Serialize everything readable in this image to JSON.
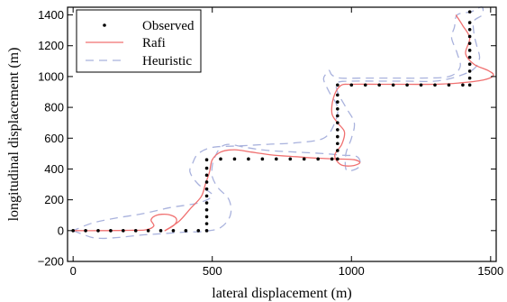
{
  "chart_data": {
    "type": "line",
    "title": "",
    "xlabel": "lateral displacement (m)",
    "ylabel": "longitudinal displacement (m)",
    "xlim": [
      -20,
      1520
    ],
    "ylim": [
      -200,
      1450
    ],
    "xticks": [
      0,
      500,
      1000,
      1500
    ],
    "yticks": [
      -200,
      0,
      200,
      400,
      600,
      800,
      1000,
      1200,
      1400
    ],
    "grid": false,
    "legend_position": "top-left",
    "legend": [
      {
        "label": "Observed",
        "style": "dotted-marker",
        "color": "#000000"
      },
      {
        "label": "Rafi",
        "style": "solid",
        "color": "#f07070"
      },
      {
        "label": "Heuristic",
        "style": "dashed",
        "color": "#a9b2dd"
      }
    ],
    "series": [
      {
        "name": "Observed",
        "color": "#000000",
        "style": "dots",
        "x": [
          0,
          45,
          90,
          135,
          180,
          225,
          270,
          315,
          360,
          405,
          450,
          480,
          480,
          480,
          480,
          480,
          480,
          480,
          480,
          480,
          480,
          480,
          530,
          580,
          630,
          680,
          730,
          780,
          830,
          880,
          930,
          950,
          950,
          950,
          950,
          950,
          950,
          950,
          950,
          950,
          950,
          950,
          1000,
          1050,
          1100,
          1150,
          1200,
          1250,
          1300,
          1350,
          1400,
          1425,
          1425,
          1425,
          1425,
          1425,
          1425,
          1425,
          1425,
          1425,
          1425,
          1425
        ],
        "y": [
          0,
          0,
          0,
          0,
          0,
          0,
          0,
          0,
          0,
          0,
          0,
          0,
          45,
          90,
          135,
          180,
          225,
          270,
          315,
          360,
          405,
          460,
          465,
          465,
          465,
          465,
          465,
          465,
          465,
          465,
          465,
          465,
          520,
          565,
          610,
          655,
          700,
          745,
          790,
          835,
          880,
          945,
          945,
          945,
          945,
          945,
          945,
          945,
          945,
          945,
          945,
          945,
          990,
          1035,
          1080,
          1125,
          1170,
          1215,
          1260,
          1305,
          1350,
          1420
        ]
      },
      {
        "name": "Rafi",
        "color": "#f07070",
        "style": "solid",
        "x": [
          0,
          100,
          200,
          260,
          290,
          280,
          300,
          340,
          370,
          365,
          330,
          380,
          420,
          460,
          475,
          490,
          500,
          530,
          580,
          640,
          720,
          800,
          880,
          950,
          1010,
          1030,
          1000,
          960,
          940,
          965,
          975,
          950,
          930,
          935,
          960,
          1000,
          1100,
          1200,
          1300,
          1400,
          1480,
          1510,
          1490,
          1440,
          1410,
          1425,
          1400,
          1375
        ],
        "y": [
          0,
          0,
          2,
          5,
          30,
          70,
          100,
          105,
          80,
          40,
          0,
          60,
          140,
          220,
          300,
          380,
          460,
          510,
          525,
          510,
          490,
          480,
          470,
          465,
          460,
          440,
          420,
          430,
          490,
          560,
          640,
          700,
          760,
          860,
          940,
          950,
          950,
          950,
          950,
          960,
          980,
          1010,
          1040,
          1080,
          1150,
          1250,
          1330,
          1400
        ]
      },
      {
        "name": "Heuristic",
        "color": "#a9b2dd",
        "style": "dashed",
        "x": [
          0,
          60,
          100,
          160,
          240,
          320,
          400,
          470,
          530,
          565,
          560,
          520,
          500,
          500,
          510,
          530,
          560,
          620,
          700,
          800,
          900,
          960,
          1020,
          1030,
          1000,
          980,
          980,
          1000,
          1010,
          980,
          950,
          950,
          1000,
          1100,
          1200,
          1300,
          1380,
          1440,
          1460,
          1450,
          1440,
          1440,
          1470,
          1470,
          1450,
          1430,
          1380,
          1370,
          1360,
          1380,
          1390,
          1350,
          1250,
          1150,
          1050,
          960,
          930,
          920,
          910,
          900,
          920,
          950,
          940,
          900,
          800,
          700,
          600,
          500,
          450,
          430,
          420,
          450,
          500,
          450,
          350,
          250,
          150,
          70,
          0
        ],
        "y": [
          0,
          -40,
          -50,
          -45,
          -30,
          -20,
          -10,
          -5,
          20,
          100,
          200,
          280,
          350,
          420,
          480,
          540,
          560,
          540,
          520,
          510,
          500,
          490,
          480,
          420,
          390,
          400,
          500,
          600,
          700,
          800,
          900,
          960,
          970,
          970,
          970,
          970,
          1000,
          1050,
          1120,
          1200,
          1280,
          1360,
          1400,
          1450,
          1440,
          1420,
          1400,
          1320,
          1250,
          1150,
          1060,
          1000,
          990,
          990,
          990,
          990,
          1010,
          1040,
          1020,
          980,
          900,
          800,
          700,
          600,
          570,
          560,
          550,
          540,
          500,
          440,
          380,
          300,
          230,
          180,
          150,
          110,
          80,
          50,
          0
        ]
      }
    ]
  }
}
